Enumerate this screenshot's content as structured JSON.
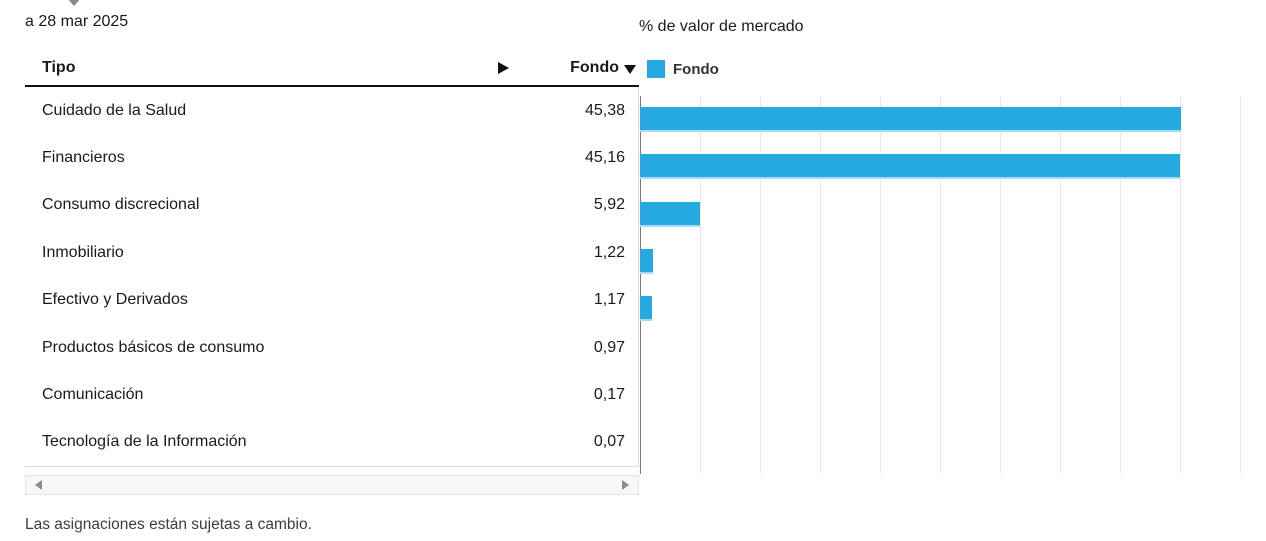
{
  "page": {
    "as_of": "a 28 mar 2025",
    "footnote": "Las asignaciones están sujetas a cambio."
  },
  "table": {
    "header": {
      "type_column": "Tipo",
      "fund_column": "Fondo"
    },
    "rows": [
      {
        "label": "Cuidado de la Salud",
        "value": "45,38"
      },
      {
        "label": "Financieros",
        "value": "45,16"
      },
      {
        "label": "Consumo discrecional",
        "value": "5,92"
      },
      {
        "label": "Inmobiliario",
        "value": "1,22"
      },
      {
        "label": "Efectivo y Derivados",
        "value": "1,17"
      },
      {
        "label": "Productos básicos de consumo",
        "value": "0,97"
      },
      {
        "label": "Comunicación",
        "value": "0,17"
      },
      {
        "label": "Tecnología de la Información",
        "value": "0,07"
      }
    ]
  },
  "chart": {
    "title": "% de valor de mercado",
    "legend_label": "Fondo"
  },
  "chart_data": {
    "type": "bar",
    "orientation": "horizontal",
    "title": "% de valor de mercado",
    "legend": [
      "Fondo"
    ],
    "legend_position": "top-left",
    "categories": [
      "Cuidado de la Salud",
      "Financieros",
      "Consumo discrecional",
      "Inmobiliario",
      "Efectivo y Derivados",
      "Productos básicos de consumo",
      "Comunicación",
      "Tecnología de la Información"
    ],
    "values": [
      45.38,
      45.16,
      5.92,
      1.22,
      1.17,
      0.97,
      0.17,
      0.07
    ],
    "bar_display_pct": [
      45.1,
      45.0,
      5.0,
      1.05,
      1.0,
      0,
      0,
      0
    ],
    "xlim": [
      0,
      50
    ],
    "gridline_step": 5,
    "grid": true,
    "bar_color": "#26a9e0"
  },
  "icons": {
    "dropdown_caret": "chevron-down",
    "column_expand": "triangle-right",
    "sort_descending": "triangle-down",
    "scroll_left": "triangle-left",
    "scroll_right": "triangle-right"
  }
}
